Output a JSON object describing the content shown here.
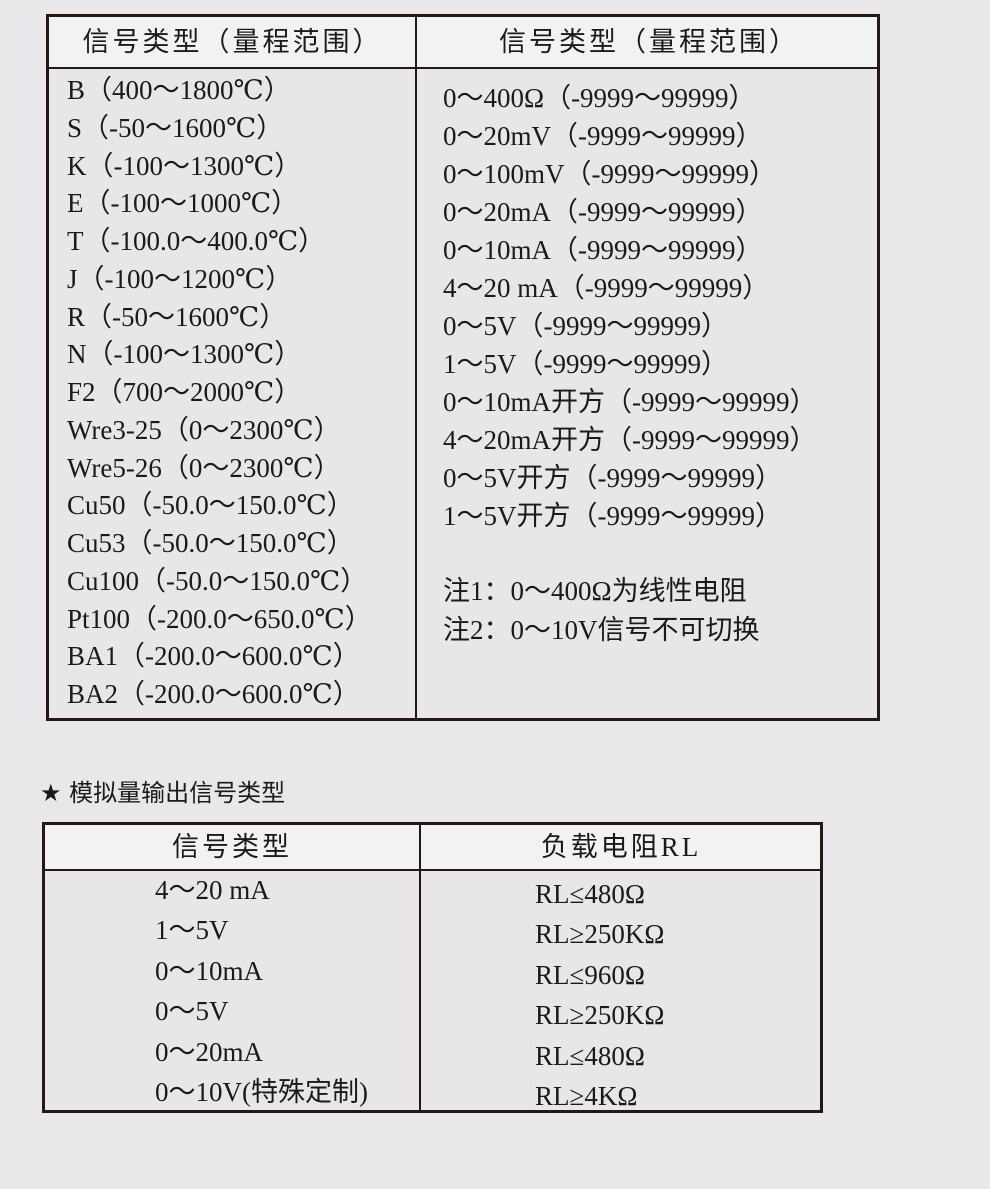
{
  "input_table": {
    "headers": [
      "信号类型（量程范围）",
      "信号类型（量程范围）"
    ],
    "left_rows": [
      "B（400～1800℃）",
      "S（-50～1600℃）",
      "K（-100～1300℃）",
      "E（-100～1000℃）",
      "T（-100.0～400.0℃）",
      "J（-100～1200℃）",
      "R（-50～1600℃）",
      "N（-100～1300℃）",
      "F2（700～2000℃）",
      "Wre3-25（0～2300℃）",
      "Wre5-26（0～2300℃）",
      "Cu50（-50.0～150.0℃）",
      "Cu53（-50.0～150.0℃）",
      "Cu100（-50.0～150.0℃）",
      "Pt100（-200.0～650.0℃）",
      "BA1（-200.0～600.0℃）",
      "BA2（-200.0～600.0℃）"
    ],
    "right_rows": [
      "0～400Ω（-9999～99999）",
      "0～20mV（-9999～99999）",
      "0～100mV（-9999～99999）",
      "0～20mA（-9999～99999）",
      "0～10mA（-9999～99999）",
      "4～20 mA（-9999～99999）",
      "0～5V（-9999～99999）",
      "1～5V（-9999～99999）",
      "0～10mA开方（-9999～99999）",
      "4～20mA开方（-9999～99999）",
      "0～5V开方（-9999～99999）",
      "1～5V开方（-9999～99999）"
    ],
    "notes": [
      "注1：0～400Ω为线性电阻",
      "注2：0～10V信号不可切换"
    ]
  },
  "output_section": {
    "title": "★ 模拟量输出信号类型",
    "headers": [
      "信号类型",
      "负载电阻RL"
    ],
    "rows": [
      {
        "signal": "4～20 mA",
        "load": "RL≤480Ω"
      },
      {
        "signal": "1～5V",
        "load": "RL≥250KΩ"
      },
      {
        "signal": "0～10mA",
        "load": "RL≤960Ω"
      },
      {
        "signal": "0～5V",
        "load": "RL≥250KΩ"
      },
      {
        "signal": "0～20mA",
        "load": "RL≤480Ω"
      },
      {
        "signal": "0～10V(特殊定制)",
        "load": "RL≥4KΩ"
      }
    ]
  }
}
